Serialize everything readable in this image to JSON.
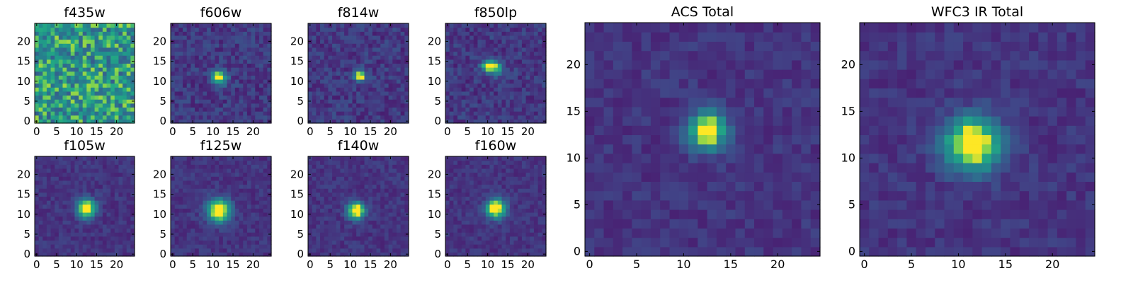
{
  "chart_data": [
    {
      "type": "heatmap",
      "title": "f435w",
      "xticks": [
        0,
        5,
        10,
        15,
        20
      ],
      "yticks": [
        0,
        5,
        10,
        15,
        20
      ],
      "xlim": [
        -0.5,
        24.5
      ],
      "ylim": [
        -0.5,
        24.5
      ],
      "grid": false,
      "noise": "high",
      "sources": []
    },
    {
      "type": "heatmap",
      "title": "f606w",
      "xticks": [
        0,
        5,
        10,
        15,
        20
      ],
      "yticks": [
        0,
        5,
        10,
        15,
        20
      ],
      "xlim": [
        -0.5,
        24.5
      ],
      "ylim": [
        -0.5,
        24.5
      ],
      "grid": false,
      "noise": "medium",
      "sources": [
        {
          "x": 11.5,
          "y": 11,
          "amp": 0.85,
          "sigma": 1.3
        }
      ]
    },
    {
      "type": "heatmap",
      "title": "f814w",
      "xticks": [
        0,
        5,
        10,
        15,
        20
      ],
      "yticks": [
        0,
        5,
        10,
        15,
        20
      ],
      "xlim": [
        -0.5,
        24.5
      ],
      "ylim": [
        -0.5,
        24.5
      ],
      "grid": false,
      "noise": "medium",
      "sources": [
        {
          "x": 12.5,
          "y": 11.5,
          "amp": 0.95,
          "sigma": 0.9
        }
      ]
    },
    {
      "type": "heatmap",
      "title": "f850lp",
      "xticks": [
        0,
        5,
        10,
        15,
        20
      ],
      "yticks": [
        0,
        5,
        10,
        15,
        20
      ],
      "xlim": [
        -0.5,
        24.5
      ],
      "ylim": [
        -0.5,
        24.5
      ],
      "grid": false,
      "noise": "medium",
      "sources": [
        {
          "x": 10,
          "y": 14,
          "amp": 0.75,
          "sigma": 1.0
        },
        {
          "x": 12,
          "y": 13.5,
          "amp": 0.6,
          "sigma": 1.2
        }
      ]
    },
    {
      "type": "heatmap",
      "title": "ACS Total",
      "xticks": [
        0,
        5,
        10,
        15,
        20
      ],
      "yticks": [
        0,
        5,
        10,
        15,
        20
      ],
      "xlim": [
        -0.5,
        24.5
      ],
      "ylim": [
        -0.5,
        24.5
      ],
      "grid": false,
      "noise": "low",
      "sources": [
        {
          "x": 12.5,
          "y": 13,
          "amp": 0.95,
          "sigma": 1.4
        }
      ]
    },
    {
      "type": "heatmap",
      "title": "WFC3 IR Total",
      "xticks": [
        0,
        5,
        10,
        15,
        20
      ],
      "yticks": [
        0,
        5,
        10,
        15,
        20
      ],
      "xlim": [
        -0.5,
        24.5
      ],
      "ylim": [
        -0.5,
        24.5
      ],
      "grid": false,
      "noise": "low",
      "sources": [
        {
          "x": 11.5,
          "y": 11.5,
          "amp": 1.0,
          "sigma": 2.0
        }
      ]
    },
    {
      "type": "heatmap",
      "title": "f105w",
      "xticks": [
        0,
        5,
        10,
        15,
        20
      ],
      "yticks": [
        0,
        5,
        10,
        15,
        20
      ],
      "xlim": [
        -0.5,
        24.5
      ],
      "ylim": [
        -0.5,
        24.5
      ],
      "grid": false,
      "noise": "low",
      "sources": [
        {
          "x": 12.5,
          "y": 11.5,
          "amp": 1.0,
          "sigma": 1.6
        }
      ]
    },
    {
      "type": "heatmap",
      "title": "f125w",
      "xticks": [
        0,
        5,
        10,
        15,
        20
      ],
      "yticks": [
        0,
        5,
        10,
        15,
        20
      ],
      "xlim": [
        -0.5,
        24.5
      ],
      "ylim": [
        -0.5,
        24.5
      ],
      "grid": false,
      "noise": "low",
      "sources": [
        {
          "x": 11.5,
          "y": 11,
          "amp": 1.0,
          "sigma": 2.0
        }
      ]
    },
    {
      "type": "heatmap",
      "title": "f140w",
      "xticks": [
        0,
        5,
        10,
        15,
        20
      ],
      "yticks": [
        0,
        5,
        10,
        15,
        20
      ],
      "xlim": [
        -0.5,
        24.5
      ],
      "ylim": [
        -0.5,
        24.5
      ],
      "grid": false,
      "noise": "low",
      "sources": [
        {
          "x": 11.5,
          "y": 11,
          "amp": 1.0,
          "sigma": 1.5
        }
      ]
    },
    {
      "type": "heatmap",
      "title": "f160w",
      "xticks": [
        0,
        5,
        10,
        15,
        20
      ],
      "yticks": [
        0,
        5,
        10,
        15,
        20
      ],
      "xlim": [
        -0.5,
        24.5
      ],
      "ylim": [
        -0.5,
        24.5
      ],
      "grid": false,
      "noise": "low",
      "sources": [
        {
          "x": 12,
          "y": 11.5,
          "amp": 1.0,
          "sigma": 1.7
        }
      ]
    }
  ],
  "colormap": "viridis"
}
